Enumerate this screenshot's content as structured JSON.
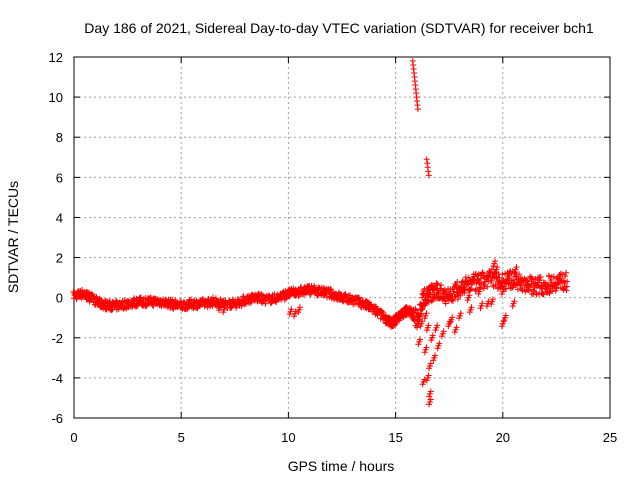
{
  "chart_data": {
    "type": "scatter",
    "title": "Day 186 of 2021, Sidereal Day-to-day VTEC variation (SDTVAR) for receiver bch1",
    "xlabel": "GPS time / hours",
    "ylabel": "SDTVAR / TECUs",
    "xlim": [
      0,
      25
    ],
    "ylim": [
      -6,
      12
    ],
    "xticks": [
      0,
      5,
      10,
      15,
      20,
      25
    ],
    "yticks": [
      -6,
      -4,
      -2,
      0,
      2,
      4,
      6,
      8,
      10,
      12
    ],
    "xtick_labels": [
      "0",
      "5",
      "10",
      "15",
      "20",
      "25"
    ],
    "ytick_labels": [
      "-6",
      "-4",
      "-2",
      "0",
      "2",
      "4",
      "6",
      "8",
      "10",
      "12"
    ],
    "grid": true,
    "marker": "+",
    "color": "#ff0000",
    "series": [
      {
        "name": "SDTVAR",
        "trend": [
          [
            0.0,
            0.1
          ],
          [
            0.4,
            0.2
          ],
          [
            0.8,
            0.0
          ],
          [
            1.2,
            -0.3
          ],
          [
            1.6,
            -0.4
          ],
          [
            2.0,
            -0.4
          ],
          [
            2.5,
            -0.3
          ],
          [
            3.0,
            -0.2
          ],
          [
            3.5,
            -0.2
          ],
          [
            4.0,
            -0.2
          ],
          [
            4.5,
            -0.3
          ],
          [
            5.0,
            -0.4
          ],
          [
            5.5,
            -0.3
          ],
          [
            6.0,
            -0.3
          ],
          [
            6.5,
            -0.2
          ],
          [
            7.0,
            -0.3
          ],
          [
            7.5,
            -0.3
          ],
          [
            8.0,
            -0.1
          ],
          [
            8.5,
            0.0
          ],
          [
            9.0,
            -0.1
          ],
          [
            9.5,
            0.0
          ],
          [
            10.0,
            0.2
          ],
          [
            10.5,
            0.3
          ],
          [
            11.0,
            0.4
          ],
          [
            11.5,
            0.3
          ],
          [
            12.0,
            0.2
          ],
          [
            12.5,
            0.0
          ],
          [
            13.0,
            -0.1
          ],
          [
            13.5,
            -0.3
          ],
          [
            14.0,
            -0.6
          ],
          [
            14.5,
            -1.0
          ],
          [
            14.8,
            -1.3
          ],
          [
            15.0,
            -1.1
          ],
          [
            15.3,
            -0.8
          ],
          [
            15.6,
            -0.6
          ],
          [
            16.0,
            -1.1
          ],
          [
            16.3,
            0.0
          ],
          [
            16.6,
            0.2
          ],
          [
            17.0,
            0.3
          ],
          [
            17.5,
            0.1
          ],
          [
            18.0,
            0.4
          ],
          [
            18.5,
            0.7
          ],
          [
            19.0,
            0.8
          ],
          [
            19.5,
            1.0
          ],
          [
            20.0,
            0.8
          ],
          [
            20.5,
            0.9
          ],
          [
            21.0,
            0.7
          ],
          [
            21.5,
            0.6
          ],
          [
            22.0,
            0.6
          ],
          [
            22.5,
            0.8
          ],
          [
            23.0,
            0.8
          ]
        ],
        "dips": [
          [
            10.1,
            -0.7
          ],
          [
            10.3,
            -0.8
          ],
          [
            10.5,
            -0.6
          ],
          [
            7.0,
            -0.6
          ],
          [
            6.8,
            -0.5
          ],
          [
            16.5,
            -1.5
          ],
          [
            16.7,
            -2.0
          ],
          [
            16.9,
            -1.5
          ],
          [
            16.4,
            -2.6
          ],
          [
            16.6,
            -3.4
          ],
          [
            16.3,
            -4.2
          ],
          [
            16.5,
            -4.0
          ],
          [
            16.6,
            -4.8
          ],
          [
            16.6,
            -5.2
          ],
          [
            16.8,
            -3.0
          ],
          [
            17.2,
            -1.8
          ],
          [
            17.5,
            -1.3
          ],
          [
            18.0,
            -0.9
          ],
          [
            18.5,
            -0.6
          ],
          [
            19.0,
            -0.4
          ],
          [
            19.5,
            -0.2
          ],
          [
            20.0,
            0.3
          ],
          [
            17.0,
            -2.4
          ],
          [
            16.1,
            -2.2
          ],
          [
            17.8,
            -1.6
          ],
          [
            19.3,
            -0.3
          ],
          [
            20.1,
            -1.0
          ],
          [
            20.0,
            -1.3
          ],
          [
            19.6,
            1.7
          ],
          [
            19.7,
            1.4
          ],
          [
            20.3,
            1.2
          ],
          [
            20.6,
            1.4
          ],
          [
            16.2,
            -1.3
          ],
          [
            16.4,
            -0.9
          ],
          [
            17.6,
            -1.1
          ],
          [
            18.4,
            0.0
          ],
          [
            18.9,
            0.3
          ],
          [
            20.5,
            -0.3
          ]
        ],
        "outliers": [
          [
            15.8,
            11.8
          ],
          [
            15.82,
            11.6
          ],
          [
            15.84,
            11.4
          ],
          [
            15.86,
            11.2
          ],
          [
            15.88,
            11.0
          ],
          [
            15.9,
            10.8
          ],
          [
            15.92,
            10.6
          ],
          [
            15.94,
            10.4
          ],
          [
            15.96,
            10.2
          ],
          [
            15.98,
            10.0
          ],
          [
            16.0,
            9.8
          ],
          [
            16.02,
            9.6
          ],
          [
            16.04,
            9.4
          ],
          [
            16.45,
            6.9
          ],
          [
            16.48,
            6.7
          ],
          [
            16.5,
            6.5
          ],
          [
            16.52,
            6.3
          ],
          [
            16.55,
            6.1
          ]
        ]
      }
    ]
  }
}
